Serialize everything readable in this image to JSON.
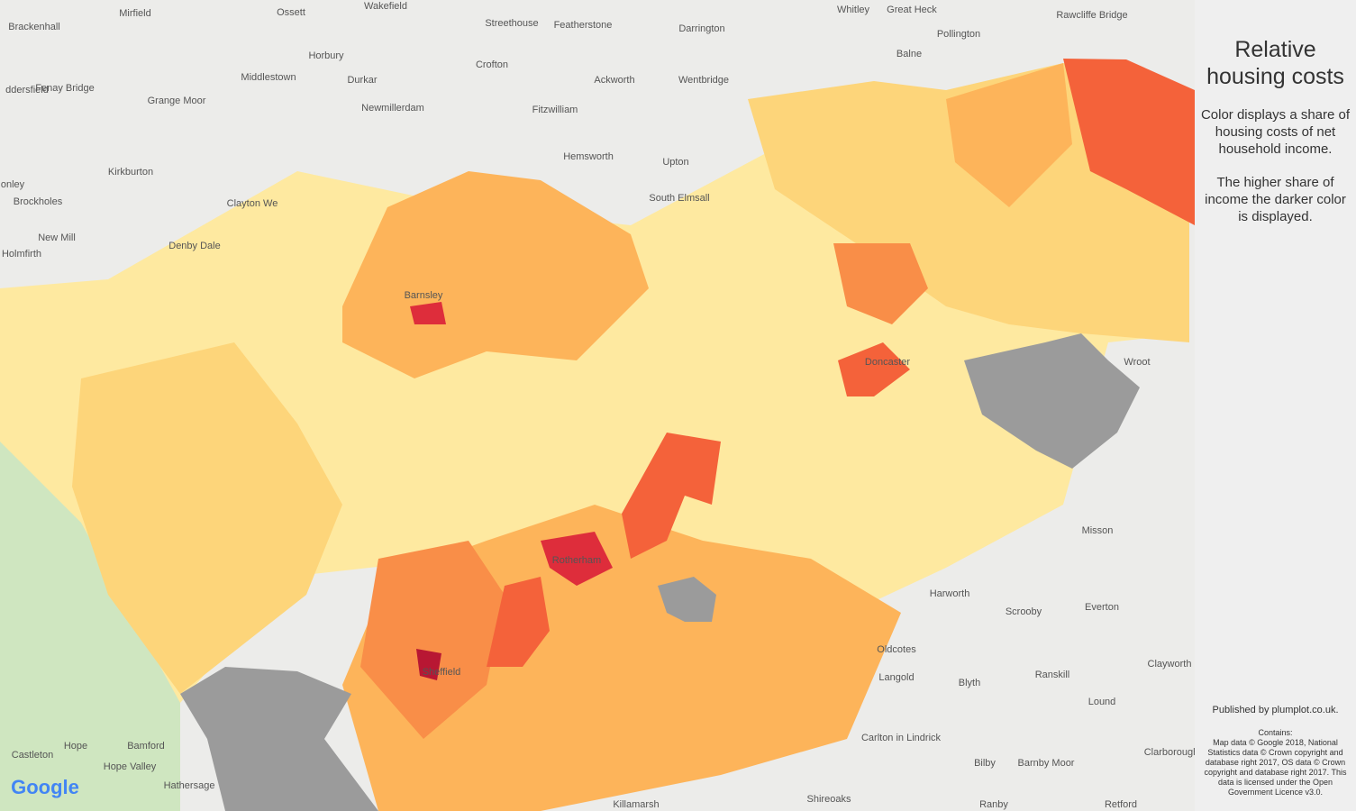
{
  "panel": {
    "title": "Relative housing costs",
    "description": [
      "Color displays a share of housing costs of net household income.",
      "The higher share of income the darker color is displayed."
    ],
    "publisher": "Published by plumplot.co.uk.",
    "attribution_heading": "Contains:",
    "attribution": "Map data © Google 2018, National Statistics data © Crown copyright and database right 2017, OS data © Crown copyright and database right 2017. This data is licensed under the Open Government Licence v3.0."
  },
  "map": {
    "logo": "Google",
    "places": [
      "Mirfield",
      "Ossett",
      "Wakefield",
      "Streethouse",
      "Featherstone",
      "Whitley",
      "Great Heck",
      "Rawcliffe Bridge",
      "Brackenhall",
      "Darrington",
      "Pollington",
      "Horbury",
      "Crofton",
      "Balne",
      "ddersfield",
      "Middlestown",
      "Durkar",
      "Ackworth",
      "Wentbridge",
      "Grange Moor",
      "Fenay Bridge",
      "Newmillerdam",
      "Fitzwilliam",
      "Kirkburton",
      "Hemsworth",
      "Upton",
      "onley",
      "Brockholes",
      "Clayton We",
      "South Elmsall",
      "New Mill",
      "Denby Dale",
      "Holmfirth",
      "Wroot",
      "Misson",
      "Harworth",
      "Scrooby",
      "Everton",
      "Blyth",
      "Ranskill",
      "Lound",
      "Clayworth",
      "Oldcotes",
      "Langold",
      "Carlton in Lindrick",
      "Barnby Moor",
      "Bilby",
      "Clarborough",
      "Ranby",
      "Retford",
      "Castleton",
      "Hope",
      "Bamford",
      "Hope Valley",
      "Hathersage",
      "Killamarsh",
      "Shireoaks",
      "Barnsley",
      "Rotherham",
      "Sheffield",
      "Doncaster"
    ]
  }
}
